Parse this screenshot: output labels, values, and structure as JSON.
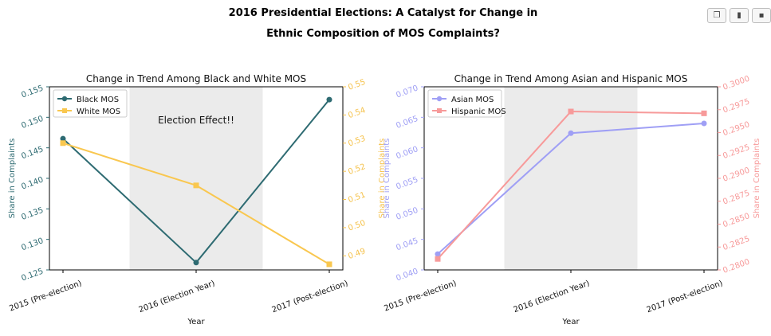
{
  "figure": {
    "title_line1": "2016 Presidential Elections: A Catalyst for Change in",
    "title_line2": "Ethnic Composition of MOS Complaints?"
  },
  "toolbar": {
    "icons": [
      "copy-icon",
      "chart-icon",
      "save-icon"
    ],
    "glyphs": [
      "❐",
      "▮",
      "▪"
    ]
  },
  "chart_data": [
    {
      "type": "line",
      "title": "Change in Trend Among Black and White MOS",
      "xlabel": "Year",
      "categories": [
        "2015 (Pre-election)",
        "2016 (Election Year)",
        "2017 (Post-election)"
      ],
      "shaded_category": "2016 (Election Year)",
      "annotation": "Election Effect!!",
      "legend_position": "upper-left",
      "left_axis": {
        "label": "Share in Complaints",
        "ylim": [
          0.125,
          0.155
        ],
        "ticks": [
          "0.125",
          "0.130",
          "0.135",
          "0.140",
          "0.145",
          "0.150",
          "0.155"
        ],
        "color": "#2e6b72"
      },
      "right_axis": {
        "label": "Share in Complaints",
        "ylim": [
          0.485,
          0.55
        ],
        "ticks": [
          "0.49",
          "0.50",
          "0.51",
          "0.52",
          "0.53",
          "0.54",
          "0.55"
        ],
        "color": "#f5c24c"
      },
      "series": [
        {
          "name": "Black MOS",
          "axis": "left",
          "color": "#2e6b72",
          "marker": "circle",
          "values": [
            0.1465,
            0.1262,
            0.1529
          ]
        },
        {
          "name": "White MOS",
          "axis": "right",
          "color": "#f9c74f",
          "marker": "square",
          "values": [
            0.53,
            0.515,
            0.487
          ]
        }
      ]
    },
    {
      "type": "line",
      "title": "Change in Trend Among Asian and Hispanic MOS",
      "xlabel": "Year",
      "categories": [
        "2015 (Pre-election)",
        "2016 (Election Year)",
        "2017 (Post-election)"
      ],
      "shaded_category": "2016 (Election Year)",
      "legend_position": "upper-left",
      "left_axis": {
        "label": "Share in Complaints",
        "ylim": [
          0.04,
          0.07
        ],
        "ticks": [
          "0.040",
          "0.045",
          "0.050",
          "0.055",
          "0.060",
          "0.065",
          "0.070"
        ],
        "color": "#9f9ff5"
      },
      "right_axis": {
        "label": "Share in Complaints",
        "ylim": [
          0.28,
          0.3
        ],
        "ticks": [
          "0.2800",
          "0.2825",
          "0.2850",
          "0.2875",
          "0.2900",
          "0.2925",
          "0.2950",
          "0.2975",
          "0.3000"
        ],
        "color": "#f79a9a"
      },
      "series": [
        {
          "name": "Asian MOS",
          "axis": "left",
          "color": "#9f9ff5",
          "marker": "circle",
          "values": [
            0.0426,
            0.0624,
            0.064
          ]
        },
        {
          "name": "Hispanic MOS",
          "axis": "right",
          "color": "#f79a9a",
          "marker": "square",
          "values": [
            0.2812,
            0.2973,
            0.2971
          ]
        }
      ]
    }
  ]
}
